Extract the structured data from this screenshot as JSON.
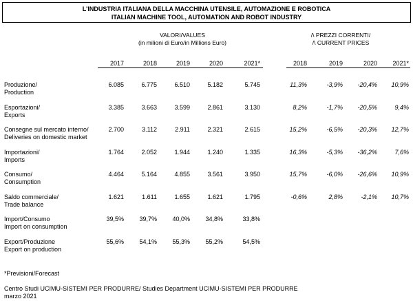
{
  "title": {
    "line1": "L'INDUSTRIA ITALIANA DELLA MACCHINA UTENSILE, AUTOMAZIONE E ROBOTICA",
    "line2": "ITALIAN MACHINE TOOL, AUTOMATION AND ROBOT INDUSTRY"
  },
  "groups": {
    "values_line1": "VALORI/VALUES",
    "values_line2": "(in milioni di Euro/in Millions Euro)",
    "changes_line1": "/\\ PREZZI CORRENTI/",
    "changes_line2": "/\\ CURRENT PRICES"
  },
  "value_years": [
    "2017",
    "2018",
    "2019",
    "2020",
    "2021*"
  ],
  "change_years": [
    "2018",
    "2019",
    "2020",
    "2021*"
  ],
  "rows": [
    {
      "label1": "Produzione/",
      "label2": "Production",
      "values": [
        "6.085",
        "6.775",
        "6.510",
        "5.182",
        "5.745"
      ],
      "changes": [
        "11,3%",
        "-3,9%",
        "-20,4%",
        "10,9%"
      ]
    },
    {
      "label1": "Esportazioni/",
      "label2": "Exports",
      "values": [
        "3.385",
        "3.663",
        "3.599",
        "2.861",
        "3.130"
      ],
      "changes": [
        "8,2%",
        "-1,7%",
        "-20,5%",
        "9,4%"
      ]
    },
    {
      "label1": "Consegne sul mercato interno/",
      "label2": "Deliveries on domestic market",
      "values": [
        "2.700",
        "3.112",
        "2.911",
        "2.321",
        "2.615"
      ],
      "changes": [
        "15,2%",
        "-6,5%",
        "-20,3%",
        "12,7%"
      ]
    },
    {
      "label1": "Importazioni/",
      "label2": "Imports",
      "values": [
        "1.764",
        "2.052",
        "1.944",
        "1.240",
        "1.335"
      ],
      "changes": [
        "16,3%",
        "-5,3%",
        "-36,2%",
        "7,6%"
      ]
    },
    {
      "label1": "Consumo/",
      "label2": "Consumption",
      "values": [
        "4.464",
        "5.164",
        "4.855",
        "3.561",
        "3.950"
      ],
      "changes": [
        "15,7%",
        "-6,0%",
        "-26,6%",
        "10,9%"
      ]
    },
    {
      "label1": "Saldo commerciale/",
      "label2": "Trade balance",
      "values": [
        "1.621",
        "1.611",
        "1.655",
        "1.621",
        "1.795"
      ],
      "changes": [
        "-0,6%",
        "2,8%",
        "-2,1%",
        "10,7%"
      ]
    },
    {
      "label1": "Import/Consumo",
      "label2": "Import on consumption",
      "values": [
        "39,5%",
        "39,7%",
        "40,0%",
        "34,8%",
        "33,8%"
      ],
      "changes": []
    },
    {
      "label1": "Export/Produzione",
      "label2": "Export on production",
      "values": [
        "55,6%",
        "54,1%",
        "55,3%",
        "55,2%",
        "54,5%"
      ],
      "changes": []
    }
  ],
  "footnote": "*Previsioni/Forecast",
  "source": {
    "line1": "Centro Studi UCIMU-SISTEMI PER PRODURRE/ Studies Department UCIMU-SISTEMI PER PRODURRE",
    "line2": "marzo 2021"
  }
}
